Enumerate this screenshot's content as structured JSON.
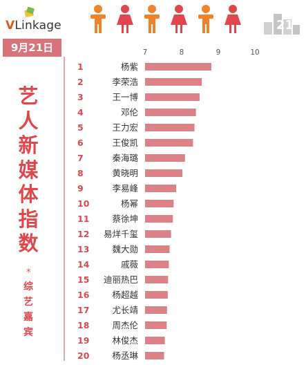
{
  "header": {
    "logo_text": "VLinkage",
    "logo_v": "V",
    "logo_rest": "Linkage",
    "person_colors": [
      "#f0822a",
      "#e0474d",
      "#f0822a",
      "#e0474d",
      "#f0822a",
      "#e0474d"
    ],
    "deco_text": "21"
  },
  "date_label": "9月21日",
  "side_title": [
    "艺",
    "人",
    "新",
    "媒",
    "体",
    "指",
    "数"
  ],
  "side_star": "*",
  "side_subtitle": [
    "综",
    "艺",
    "嘉",
    "宾"
  ],
  "colors": {
    "bar": "#dc8287",
    "accent": "#e0474d",
    "date_bg": "#d9737a"
  },
  "chart_data": {
    "type": "bar",
    "orientation": "horizontal",
    "xlim": [
      7,
      10
    ],
    "xticks": [
      "7",
      "8",
      "9",
      "10"
    ],
    "categories": [
      "杨紫",
      "李荣浩",
      "王一博",
      "邓伦",
      "王力宏",
      "王俊凯",
      "秦海璐",
      "黄晓明",
      "李易峰",
      "杨幂",
      "蔡徐坤",
      "易烊千玺",
      "魏大勋",
      "戚薇",
      "迪丽热巴",
      "杨超越",
      "尤长靖",
      "周杰伦",
      "林俊杰",
      "杨丞琳"
    ],
    "ranks": [
      "1",
      "2",
      "3",
      "4",
      "5",
      "6",
      "7",
      "8",
      "9",
      "10",
      "11",
      "12",
      "13",
      "14",
      "15",
      "16",
      "17",
      "18",
      "19",
      "20"
    ],
    "values": [
      8.81,
      8.55,
      8.49,
      8.39,
      8.35,
      8.31,
      8.09,
      8.02,
      7.85,
      7.78,
      7.76,
      7.71,
      7.67,
      7.65,
      7.63,
      7.62,
      7.6,
      7.59,
      7.54,
      7.52
    ],
    "value_labels": [
      "8.81",
      "8.55",
      "8.49",
      "8.39",
      "8.35",
      "8.31",
      "8.09",
      "8.02",
      "7.85",
      "7.78",
      "7.76",
      "7.71",
      "7.67",
      "7.65",
      "7.63",
      "7.62",
      "7.6",
      "7.59",
      "7.54",
      "7.52"
    ]
  }
}
